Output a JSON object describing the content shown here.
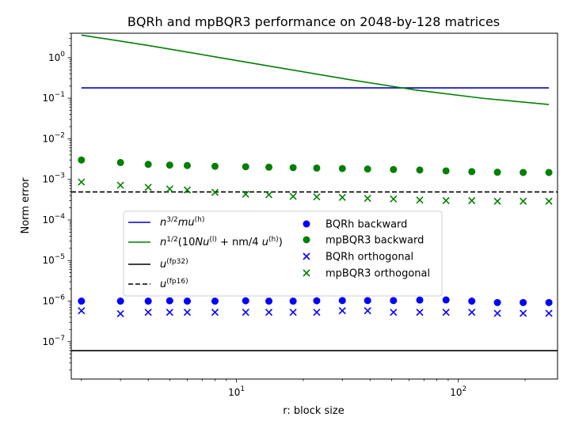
{
  "chart_data": {
    "type": "scatter",
    "title": "BQRh and mpBQR3 performance on 2048-by-128 matrices",
    "xlabel": "r: block size",
    "ylabel": "Norm error",
    "xscale": "log",
    "yscale": "log",
    "xlim": [
      1.8,
      280
    ],
    "ylim": [
      1.2e-08,
      4.0
    ],
    "x_ticks": [
      {
        "value": 10,
        "label": "10",
        "exp": "1"
      },
      {
        "value": 100,
        "label": "10",
        "exp": "2"
      }
    ],
    "y_ticks": [
      {
        "value": 1e-07,
        "label": "10",
        "exp": "−7"
      },
      {
        "value": 1e-06,
        "label": "10",
        "exp": "−6"
      },
      {
        "value": 1e-05,
        "label": "10",
        "exp": "−5"
      },
      {
        "value": 0.0001,
        "label": "10",
        "exp": "−4"
      },
      {
        "value": 0.001,
        "label": "10",
        "exp": "−3"
      },
      {
        "value": 0.01,
        "label": "10",
        "exp": "−2"
      },
      {
        "value": 0.1,
        "label": "10",
        "exp": "−1"
      },
      {
        "value": 1,
        "label": "10",
        "exp": "0"
      }
    ],
    "x": [
      2,
      3,
      4,
      5,
      6,
      8,
      11,
      14,
      18,
      23,
      30,
      39,
      51,
      67,
      88,
      115,
      150,
      196,
      256
    ],
    "lines": [
      {
        "name": "n^{3/2}mu^{(h)}",
        "color": "#0000cc",
        "style": "solid",
        "x": [
          2,
          256
        ],
        "y": [
          0.18,
          0.18
        ]
      },
      {
        "name": "n^{1/2}(10Nu^{(l)} + nm/4 u^{(h)})",
        "color": "#008000",
        "style": "solid",
        "x": [
          2,
          4,
          8,
          16,
          32,
          64,
          128,
          256
        ],
        "y": [
          3.6,
          2.0,
          1.05,
          0.55,
          0.29,
          0.16,
          0.1,
          0.07
        ]
      },
      {
        "name": "u^{(fp32)}",
        "color": "#000000",
        "style": "solid",
        "x": [
          1.8,
          280
        ],
        "y": [
          6e-08,
          6e-08
        ]
      },
      {
        "name": "u^{(fp16)}",
        "color": "#000000",
        "style": "dashed",
        "x": [
          1.8,
          280
        ],
        "y": [
          0.00049,
          0.00049
        ]
      }
    ],
    "series": [
      {
        "name": "BQRh backward",
        "marker": "circle",
        "color": "#0000ff",
        "values": [
          1e-06,
          1e-06,
          1e-06,
          1.02e-06,
          1e-06,
          1e-06,
          1.02e-06,
          1e-06,
          1e-06,
          1.02e-06,
          1.03e-06,
          1.03e-06,
          1.03e-06,
          1.06e-06,
          1.07e-06,
          1e-06,
          9.2e-07,
          9.2e-07,
          9.2e-07
        ]
      },
      {
        "name": "mpBQR3 backward",
        "marker": "circle",
        "color": "#008000",
        "values": [
          0.003,
          0.0026,
          0.00235,
          0.00225,
          0.0022,
          0.0021,
          0.00205,
          0.002,
          0.00195,
          0.0019,
          0.00185,
          0.0018,
          0.00175,
          0.0017,
          0.00162,
          0.00155,
          0.0015,
          0.00148,
          0.00148
        ]
      },
      {
        "name": "BQRh orthogonal",
        "marker": "x",
        "color": "#0000ff",
        "values": [
          5.8e-07,
          4.9e-07,
          5.3e-07,
          5.3e-07,
          5.3e-07,
          5.3e-07,
          5.3e-07,
          5.3e-07,
          5.3e-07,
          5.3e-07,
          5.8e-07,
          5.8e-07,
          5.3e-07,
          5.3e-07,
          5.3e-07,
          5.3e-07,
          5e-07,
          5e-07,
          5e-07
        ]
      },
      {
        "name": "mpBQR3 orthogonal",
        "marker": "x",
        "color": "#008000",
        "values": [
          0.00086,
          0.00072,
          0.00064,
          0.00058,
          0.00055,
          0.00048,
          0.00043,
          0.00042,
          0.00038,
          0.00037,
          0.00036,
          0.00034,
          0.00033,
          0.00031,
          0.0003,
          0.0003,
          0.00029,
          0.00029,
          0.00029
        ]
      }
    ],
    "legend_position": "center-left",
    "grid": false
  }
}
